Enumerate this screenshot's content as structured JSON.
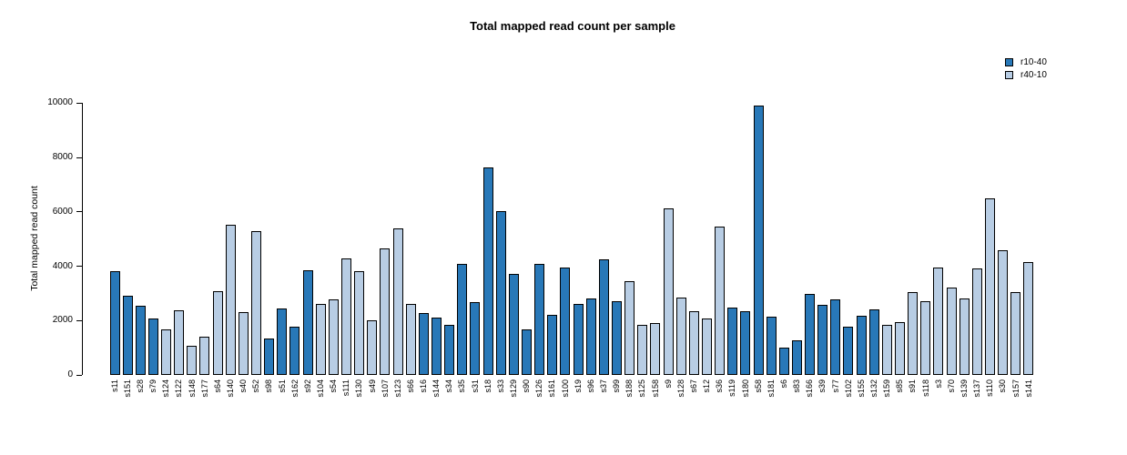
{
  "chart_data": {
    "type": "bar",
    "title": "Total mapped read count per sample",
    "xlabel": "",
    "ylabel": "Total mapped read count",
    "ylim": [
      0,
      10000
    ],
    "yticks": [
      0,
      2000,
      4000,
      6000,
      8000,
      10000
    ],
    "grid": false,
    "bar_border_color": "#000000",
    "legend": {
      "position": "top-right",
      "items": [
        {
          "label": "r10-40",
          "color": "#2878b8"
        },
        {
          "label": "r40-10",
          "color": "#b8cde4"
        }
      ]
    },
    "categories": [
      "s11",
      "s151",
      "s28",
      "s79",
      "s124",
      "s122",
      "s148",
      "s177",
      "s64",
      "s140",
      "s40",
      "s52",
      "s98",
      "s51",
      "s162",
      "s92",
      "s104",
      "s54",
      "s111",
      "s130",
      "s49",
      "s107",
      "s123",
      "s66",
      "s16",
      "s144",
      "s34",
      "s35",
      "s31",
      "s18",
      "s33",
      "s129",
      "s90",
      "s126",
      "s161",
      "s100",
      "s19",
      "s96",
      "s37",
      "s99",
      "s188",
      "s125",
      "s158",
      "s9",
      "s128",
      "s67",
      "s12",
      "s36",
      "s119",
      "s180",
      "s58",
      "s181",
      "s6",
      "s83",
      "s166",
      "s39",
      "s77",
      "s102",
      "s155",
      "s132",
      "s159",
      "s85",
      "s91",
      "s118",
      "s3",
      "s70",
      "s139",
      "s137",
      "s110",
      "s30",
      "s157",
      "s141"
    ],
    "values": [
      3820,
      2920,
      2550,
      2080,
      1680,
      2380,
      1060,
      1400,
      3080,
      5510,
      2320,
      5300,
      1350,
      2430,
      1760,
      3840,
      2620,
      2790,
      4280,
      3810,
      2020,
      4660,
      5380,
      2620,
      2270,
      2110,
      1840,
      4080,
      2680,
      7640,
      6020,
      3700,
      1660,
      4090,
      2210,
      3950,
      2610,
      2810,
      4260,
      2720,
      3450,
      1840,
      1910,
      6140,
      2840,
      2350,
      2090,
      5470,
      2490,
      2340,
      9900,
      2140,
      990,
      1270,
      2970,
      2580,
      2770,
      1780,
      2170,
      2400,
      1840,
      1930,
      3040,
      2700,
      3940,
      3230,
      2800,
      3910,
      6480,
      4580,
      3040,
      4140
    ],
    "groups": [
      "r10-40",
      "r10-40",
      "r10-40",
      "r10-40",
      "r40-10",
      "r40-10",
      "r40-10",
      "r40-10",
      "r40-10",
      "r40-10",
      "r40-10",
      "r40-10",
      "r10-40",
      "r10-40",
      "r10-40",
      "r10-40",
      "r40-10",
      "r40-10",
      "r40-10",
      "r40-10",
      "r40-10",
      "r40-10",
      "r40-10",
      "r40-10",
      "r10-40",
      "r10-40",
      "r10-40",
      "r10-40",
      "r10-40",
      "r10-40",
      "r10-40",
      "r10-40",
      "r10-40",
      "r10-40",
      "r10-40",
      "r10-40",
      "r10-40",
      "r10-40",
      "r10-40",
      "r10-40",
      "r40-10",
      "r40-10",
      "r40-10",
      "r40-10",
      "r40-10",
      "r40-10",
      "r40-10",
      "r40-10",
      "r10-40",
      "r10-40",
      "r10-40",
      "r10-40",
      "r10-40",
      "r10-40",
      "r10-40",
      "r10-40",
      "r10-40",
      "r10-40",
      "r10-40",
      "r10-40",
      "r40-10",
      "r40-10",
      "r40-10",
      "r40-10",
      "r40-10",
      "r40-10",
      "r40-10",
      "r40-10",
      "r40-10",
      "r40-10",
      "r40-10",
      "r40-10"
    ]
  }
}
